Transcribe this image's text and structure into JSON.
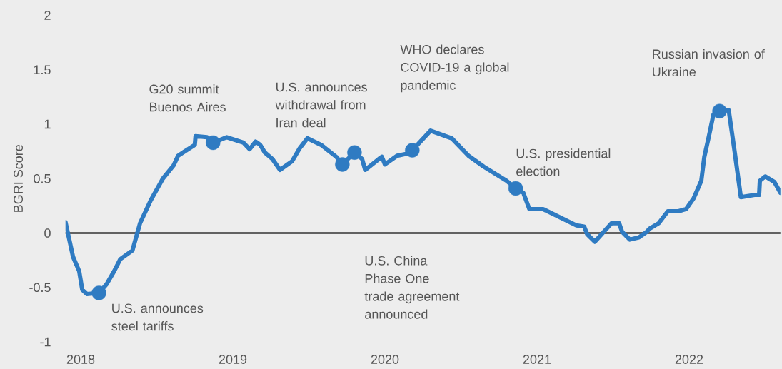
{
  "chart_data": {
    "type": "line",
    "ylabel": "BGRI Score",
    "xlim": [
      2017.9,
      2022.6
    ],
    "ylim": [
      -1,
      2
    ],
    "xticks": [
      2018,
      2019,
      2020,
      2021,
      2022
    ],
    "yticks": [
      -1,
      -0.5,
      0,
      0.5,
      1,
      1.5,
      2
    ],
    "grid": false,
    "ref_lines": [
      {
        "axis": "y",
        "value": 0,
        "color": "#333333"
      }
    ],
    "series": [
      {
        "color": "#2f7bc2",
        "marker": "none",
        "line_style": "solid",
        "x": [
          2017.9,
          2017.95,
          2017.99,
          2018.01,
          2018.04,
          2018.12,
          2018.17,
          2018.22,
          2018.26,
          2018.34,
          2018.39,
          2018.46,
          2018.54,
          2018.61,
          2018.64,
          2018.75,
          2018.755,
          2018.83,
          2018.87,
          2018.96,
          2019.07,
          2019.11,
          2019.15,
          2019.18,
          2019.21,
          2019.26,
          2019.31,
          2019.39,
          2019.44,
          2019.49,
          2019.58,
          2019.68,
          2019.72,
          2019.8,
          2019.85,
          2019.87,
          2019.96,
          2019.98,
          2020.0,
          2020.08,
          2020.15,
          2020.18,
          2020.3,
          2020.44,
          2020.55,
          2020.65,
          2020.8,
          2020.86,
          2020.91,
          2020.95,
          2021.04,
          2021.26,
          2021.31,
          2021.33,
          2021.38,
          2021.49,
          2021.54,
          2021.56,
          2021.61,
          2021.67,
          2021.72,
          2021.74,
          2021.8,
          2021.86,
          2021.93,
          2021.98,
          2022.03,
          2022.08,
          2022.1,
          2022.13,
          2022.16,
          2022.2,
          2022.26,
          2022.3,
          2022.34,
          2022.43,
          2022.46,
          2022.465,
          2022.5,
          2022.56,
          2022.6
        ],
        "values": [
          0.1,
          -0.22,
          -0.35,
          -0.52,
          -0.56,
          -0.55,
          -0.47,
          -0.35,
          -0.24,
          -0.16,
          0.09,
          0.3,
          0.5,
          0.62,
          0.71,
          0.81,
          0.89,
          0.88,
          0.83,
          0.88,
          0.83,
          0.77,
          0.84,
          0.81,
          0.74,
          0.68,
          0.58,
          0.66,
          0.78,
          0.87,
          0.81,
          0.7,
          0.63,
          0.74,
          0.68,
          0.58,
          0.68,
          0.7,
          0.63,
          0.71,
          0.73,
          0.76,
          0.94,
          0.87,
          0.71,
          0.61,
          0.48,
          0.41,
          0.37,
          0.22,
          0.22,
          0.07,
          0.06,
          -0.01,
          -0.08,
          0.09,
          0.09,
          0.01,
          -0.06,
          -0.04,
          0.01,
          0.04,
          0.09,
          0.2,
          0.2,
          0.22,
          0.32,
          0.48,
          0.7,
          0.89,
          1.09,
          1.12,
          1.13,
          0.74,
          0.33,
          0.35,
          0.35,
          0.48,
          0.52,
          0.47,
          0.37
        ]
      },
      {
        "type": "scatter",
        "color": "#2f7bc2",
        "marker": "circle",
        "x": [
          2018.12,
          2018.87,
          2019.72,
          2019.8,
          2020.18,
          2020.86,
          2022.2
        ],
        "values": [
          -0.55,
          0.83,
          0.63,
          0.74,
          0.76,
          0.41,
          1.12
        ]
      }
    ],
    "annotations": [
      {
        "text": "U.S. announces steel tariffs",
        "x": 2018.12,
        "y": -0.55
      },
      {
        "text": "G20 summit Buenos Aires",
        "x": 2018.87,
        "y": 0.83
      },
      {
        "text": "U.S. announces withdrawal from Iran deal",
        "x": 2019.72,
        "y": 0.63
      },
      "U.S. China Phase One trade agreement announced",
      "WHO declares COVID-19 a global pandemic",
      {
        "text": "U.S. presidential election",
        "x": 2020.86,
        "y": 0.41
      },
      {
        "text": "Russian invasion of Ukraine",
        "x": 2022.2,
        "y": 1.12
      }
    ]
  }
}
